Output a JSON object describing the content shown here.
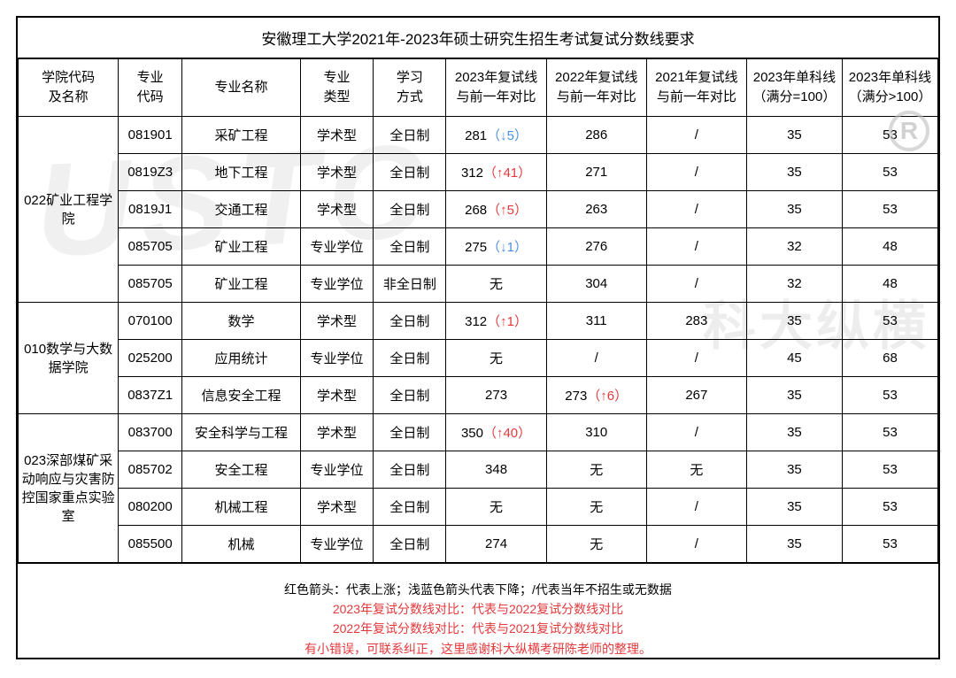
{
  "title": "安徽理工大学2021年-2023年硕士研究生招生考试复试分数线要求",
  "columns": [
    "学院代码\n及名称",
    "专业\n代码",
    "专业名称",
    "专业\n类型",
    "学习\n方式",
    "2023年复试线\n与前一年对比",
    "2022年复试线\n与前一年对比",
    "2021年复试线\n与前一年对比",
    "2023年单科线\n（满分=100）",
    "2023年单科线\n（满分>100）"
  ],
  "colleges": [
    {
      "name": "022矿业工程学\n院",
      "rows": [
        {
          "code": "081901",
          "major": "采矿工程",
          "type": "学术型",
          "mode": "全日制",
          "y2023": {
            "score": "281",
            "arrow": "↓",
            "delta": "5",
            "dir": "down"
          },
          "y2022": {
            "score": "286"
          },
          "y2021": {
            "score": "/"
          },
          "s100": "35",
          "sg100": "53"
        },
        {
          "code": "0819Z3",
          "major": "地下工程",
          "type": "学术型",
          "mode": "全日制",
          "y2023": {
            "score": "312",
            "arrow": "↑",
            "delta": "41",
            "dir": "up"
          },
          "y2022": {
            "score": "271"
          },
          "y2021": {
            "score": "/"
          },
          "s100": "35",
          "sg100": "53"
        },
        {
          "code": "0819J1",
          "major": "交通工程",
          "type": "学术型",
          "mode": "全日制",
          "y2023": {
            "score": "268",
            "arrow": "↑",
            "delta": "5",
            "dir": "up"
          },
          "y2022": {
            "score": "263"
          },
          "y2021": {
            "score": "/"
          },
          "s100": "35",
          "sg100": "53"
        },
        {
          "code": "085705",
          "major": "矿业工程",
          "type": "专业学位",
          "mode": "全日制",
          "y2023": {
            "score": "275",
            "arrow": "↓",
            "delta": "1",
            "dir": "down"
          },
          "y2022": {
            "score": "276"
          },
          "y2021": {
            "score": "/"
          },
          "s100": "32",
          "sg100": "48"
        },
        {
          "code": "085705",
          "major": "矿业工程",
          "type": "专业学位",
          "mode": "非全日制",
          "y2023": {
            "score": "无"
          },
          "y2022": {
            "score": "304"
          },
          "y2021": {
            "score": "/"
          },
          "s100": "32",
          "sg100": "48"
        }
      ]
    },
    {
      "name": "010数学与大数\n据学院",
      "rows": [
        {
          "code": "070100",
          "major": "数学",
          "type": "学术型",
          "mode": "全日制",
          "y2023": {
            "score": "312",
            "arrow": "↑",
            "delta": "1",
            "dir": "up"
          },
          "y2022": {
            "score": "311"
          },
          "y2021": {
            "score": "283"
          },
          "s100": "35",
          "sg100": "53"
        },
        {
          "code": "025200",
          "major": "应用统计",
          "type": "专业学位",
          "mode": "全日制",
          "y2023": {
            "score": "无"
          },
          "y2022": {
            "score": "/"
          },
          "y2021": {
            "score": "/"
          },
          "s100": "45",
          "sg100": "68"
        },
        {
          "code": "0837Z1",
          "major": "信息安全工程",
          "type": "学术型",
          "mode": "全日制",
          "y2023": {
            "score": "273"
          },
          "y2022": {
            "score": "273",
            "arrow": "↑",
            "delta": "6",
            "dir": "up"
          },
          "y2021": {
            "score": "267"
          },
          "s100": "35",
          "sg100": "53"
        }
      ]
    },
    {
      "name": "023深部煤矿采\n动响应与灾害防\n控国家重点实验\n室",
      "rows": [
        {
          "code": "083700",
          "major": "安全科学与工程",
          "type": "学术型",
          "mode": "全日制",
          "y2023": {
            "score": "350",
            "arrow": "↑",
            "delta": "40",
            "dir": "up"
          },
          "y2022": {
            "score": "310"
          },
          "y2021": {
            "score": "/"
          },
          "s100": "35",
          "sg100": "53"
        },
        {
          "code": "085702",
          "major": "安全工程",
          "type": "专业学位",
          "mode": "全日制",
          "y2023": {
            "score": "348"
          },
          "y2022": {
            "score": "无"
          },
          "y2021": {
            "score": "无"
          },
          "s100": "35",
          "sg100": "53"
        },
        {
          "code": "080200",
          "major": "机械工程",
          "type": "学术型",
          "mode": "全日制",
          "y2023": {
            "score": "无"
          },
          "y2022": {
            "score": "无"
          },
          "y2021": {
            "score": "/"
          },
          "s100": "35",
          "sg100": "53"
        },
        {
          "code": "085500",
          "major": "机械",
          "type": "专业学位",
          "mode": "全日制",
          "y2023": {
            "score": "274"
          },
          "y2022": {
            "score": "无"
          },
          "y2021": {
            "score": "/"
          },
          "s100": "35",
          "sg100": "53"
        }
      ]
    }
  ],
  "footer": {
    "line1_black": "红色箭头：代表上涨；浅蓝色箭头代表下降；/代表当年不招生或无数据",
    "line2_red": "2023年复试分数线对比：代表与2022复试分数线对比",
    "line3_red": "2022年复试分数线对比：代表与2021复试分数线对比",
    "line4_red": "有小错误，可联系纠正，这里感谢科大纵横考研陈老师的整理。"
  },
  "watermark1": "USTC",
  "watermark2": "科大纵横",
  "r_mark": "R",
  "colors": {
    "up": "#e4393c",
    "down": "#4a90e2",
    "border": "#000000",
    "bg": "#ffffff"
  }
}
